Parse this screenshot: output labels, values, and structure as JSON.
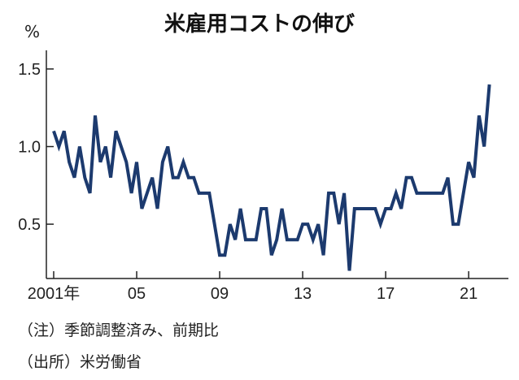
{
  "chart_data": {
    "type": "line",
    "title": "米雇用コストの伸び",
    "unit": "%",
    "ylim": [
      0.15,
      1.62
    ],
    "yticks": [
      {
        "value": 0.5,
        "label": "0.5"
      },
      {
        "value": 1.0,
        "label": "1.0"
      },
      {
        "value": 1.5,
        "label": "1.5"
      }
    ],
    "xlim": [
      2001.0,
      2022.25
    ],
    "xticks": [
      {
        "value": 2001,
        "label": "2001年"
      },
      {
        "value": 2005,
        "label": "05"
      },
      {
        "value": 2009,
        "label": "09"
      },
      {
        "value": 2013,
        "label": "13"
      },
      {
        "value": 2017,
        "label": "17"
      },
      {
        "value": 2021,
        "label": "21"
      }
    ],
    "line_color": "#1c3a6e",
    "x": [
      2001.0,
      2001.25,
      2001.5,
      2001.75,
      2002.0,
      2002.25,
      2002.5,
      2002.75,
      2003.0,
      2003.25,
      2003.5,
      2003.75,
      2004.0,
      2004.25,
      2004.5,
      2004.75,
      2005.0,
      2005.25,
      2005.5,
      2005.75,
      2006.0,
      2006.25,
      2006.5,
      2006.75,
      2007.0,
      2007.25,
      2007.5,
      2007.75,
      2008.0,
      2008.25,
      2008.5,
      2008.75,
      2009.0,
      2009.25,
      2009.5,
      2009.75,
      2010.0,
      2010.25,
      2010.5,
      2010.75,
      2011.0,
      2011.25,
      2011.5,
      2011.75,
      2012.0,
      2012.25,
      2012.5,
      2012.75,
      2013.0,
      2013.25,
      2013.5,
      2013.75,
      2014.0,
      2014.25,
      2014.5,
      2014.75,
      2015.0,
      2015.25,
      2015.5,
      2015.75,
      2016.0,
      2016.25,
      2016.5,
      2016.75,
      2017.0,
      2017.25,
      2017.5,
      2017.75,
      2018.0,
      2018.25,
      2018.5,
      2018.75,
      2019.0,
      2019.25,
      2019.5,
      2019.75,
      2020.0,
      2020.25,
      2020.5,
      2020.75,
      2021.0,
      2021.25,
      2021.5,
      2021.75,
      2022.0
    ],
    "series": [
      {
        "values": [
          1.1,
          1.0,
          1.1,
          0.9,
          0.8,
          1.0,
          0.8,
          0.7,
          1.2,
          0.9,
          1.0,
          0.8,
          1.1,
          1.0,
          0.9,
          0.7,
          0.9,
          0.6,
          0.7,
          0.8,
          0.6,
          0.9,
          1.0,
          0.8,
          0.8,
          0.9,
          0.8,
          0.8,
          0.7,
          0.7,
          0.7,
          0.5,
          0.3,
          0.3,
          0.5,
          0.4,
          0.6,
          0.4,
          0.4,
          0.4,
          0.6,
          0.6,
          0.3,
          0.4,
          0.6,
          0.4,
          0.4,
          0.4,
          0.5,
          0.5,
          0.4,
          0.5,
          0.3,
          0.7,
          0.7,
          0.5,
          0.7,
          0.2,
          0.6,
          0.6,
          0.6,
          0.6,
          0.6,
          0.5,
          0.6,
          0.6,
          0.7,
          0.6,
          0.8,
          0.8,
          0.7,
          0.7,
          0.7,
          0.7,
          0.7,
          0.7,
          0.8,
          0.5,
          0.5,
          0.7,
          0.9,
          0.8,
          1.2,
          1.0,
          1.4
        ]
      }
    ]
  },
  "notes": [
    "（注）季節調整済み、前期比",
    "（出所）米労働省"
  ]
}
